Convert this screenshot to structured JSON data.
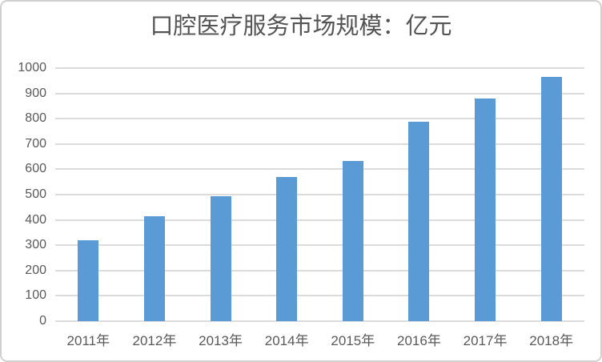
{
  "chart_data": {
    "type": "bar",
    "title": "口腔医疗服务市场规模：亿元",
    "categories": [
      "2011年",
      "2012年",
      "2013年",
      "2014年",
      "2015年",
      "2016年",
      "2017年",
      "2018年"
    ],
    "values": [
      320,
      415,
      494,
      571,
      632,
      787,
      880,
      965
    ],
    "xlabel": "",
    "ylabel": "",
    "ylim": [
      0,
      1000
    ],
    "yticks": [
      0,
      100,
      200,
      300,
      400,
      500,
      600,
      700,
      800,
      900,
      1000
    ],
    "grid": "horizontal",
    "legend": "none",
    "colors": {
      "bar": "#5B9BD5",
      "gridline": "#dcdcdc",
      "axis_text": "#595959",
      "title_text": "#545454",
      "border": "#d0d0d0",
      "background": "#ffffff"
    }
  }
}
